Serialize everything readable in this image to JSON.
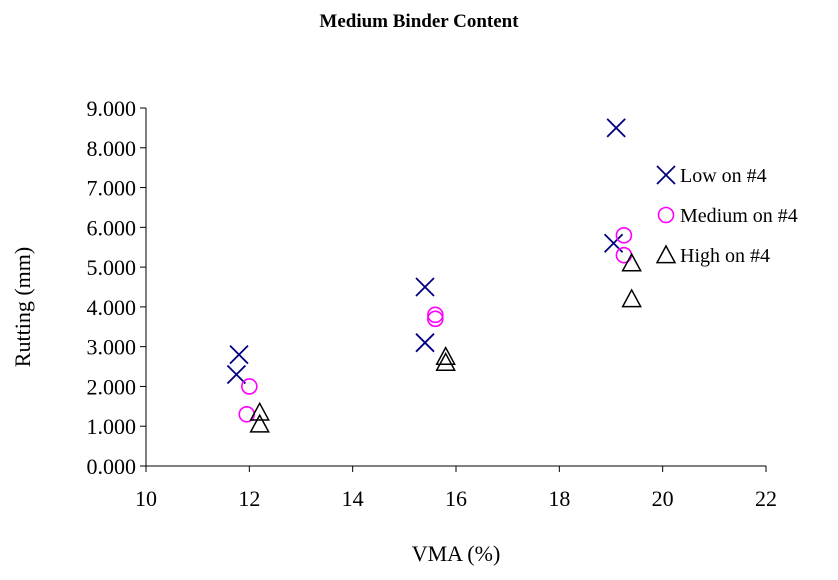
{
  "chart_data": {
    "type": "scatter",
    "title": "Medium Binder Content",
    "xlabel": "VMA (%)",
    "ylabel": "Rutting (mm)",
    "xlim": [
      10,
      22
    ],
    "ylim": [
      0,
      9
    ],
    "x_ticks": [
      "10",
      "12",
      "14",
      "16",
      "18",
      "20",
      "22"
    ],
    "y_ticks": [
      "0.000",
      "1.000",
      "2.000",
      "3.000",
      "4.000",
      "5.000",
      "6.000",
      "7.000",
      "8.000",
      "9.000"
    ],
    "grid": false,
    "legend_position": "right",
    "series": [
      {
        "name": "Low on #4",
        "marker": "x",
        "color": "#000080",
        "points": [
          {
            "x": 11.8,
            "y": 2.8
          },
          {
            "x": 11.75,
            "y": 2.3
          },
          {
            "x": 15.4,
            "y": 4.5
          },
          {
            "x": 15.4,
            "y": 3.1
          },
          {
            "x": 19.1,
            "y": 8.5
          },
          {
            "x": 19.05,
            "y": 5.6
          }
        ]
      },
      {
        "name": "Medium on #4",
        "marker": "circle",
        "color": "#ff00ff",
        "points": [
          {
            "x": 12.0,
            "y": 2.0
          },
          {
            "x": 11.95,
            "y": 1.3
          },
          {
            "x": 15.6,
            "y": 3.8
          },
          {
            "x": 15.6,
            "y": 3.7
          },
          {
            "x": 19.25,
            "y": 5.8
          },
          {
            "x": 19.25,
            "y": 5.3
          }
        ]
      },
      {
        "name": "High on #4",
        "marker": "triangle",
        "color": "#000000",
        "points": [
          {
            "x": 12.2,
            "y": 1.35
          },
          {
            "x": 12.2,
            "y": 1.05
          },
          {
            "x": 15.8,
            "y": 2.75
          },
          {
            "x": 15.8,
            "y": 2.6
          },
          {
            "x": 19.4,
            "y": 5.1
          },
          {
            "x": 19.4,
            "y": 4.2
          }
        ]
      }
    ]
  }
}
